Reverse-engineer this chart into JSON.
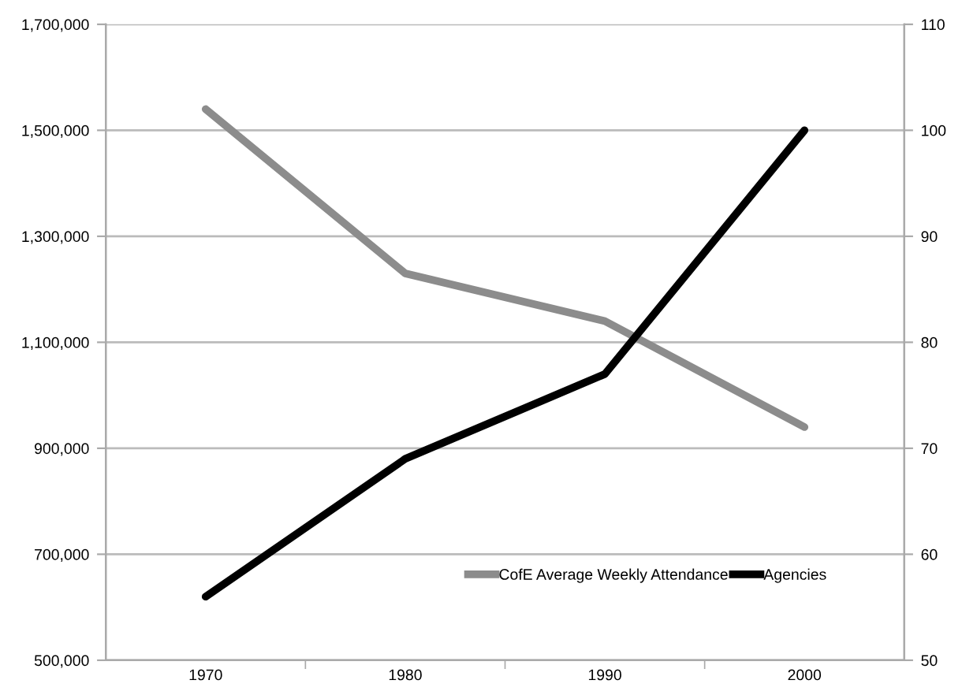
{
  "chart_data": {
    "type": "line",
    "categories": [
      "1970",
      "1980",
      "1990",
      "2000"
    ],
    "series": [
      {
        "name": "CofE Average Weekly Attendance",
        "color": "#8c8c8c",
        "values": [
          1540000,
          1230000,
          1140000,
          940000
        ]
      },
      {
        "name": "Agencies",
        "color": "#000000",
        "axis": "y2",
        "values": [
          56,
          69,
          77,
          100
        ]
      }
    ],
    "ylim": [
      500000,
      1700000
    ],
    "yticks": [
      {
        "value": 500000,
        "label": "500,000"
      },
      {
        "value": 700000,
        "label": "700,000"
      },
      {
        "value": 900000,
        "label": "900,000"
      },
      {
        "value": 1100000,
        "label": "1,100,000"
      },
      {
        "value": 1300000,
        "label": "1,300,000"
      },
      {
        "value": 1500000,
        "label": "1,500,000"
      },
      {
        "value": 1700000,
        "label": "1,700,000"
      }
    ],
    "y2lim": [
      50,
      110
    ],
    "y2ticks": [
      50,
      60,
      70,
      80,
      90,
      100,
      110
    ],
    "grid": "y",
    "legend": "bottom right",
    "marker": "none",
    "line_style": "solid"
  }
}
